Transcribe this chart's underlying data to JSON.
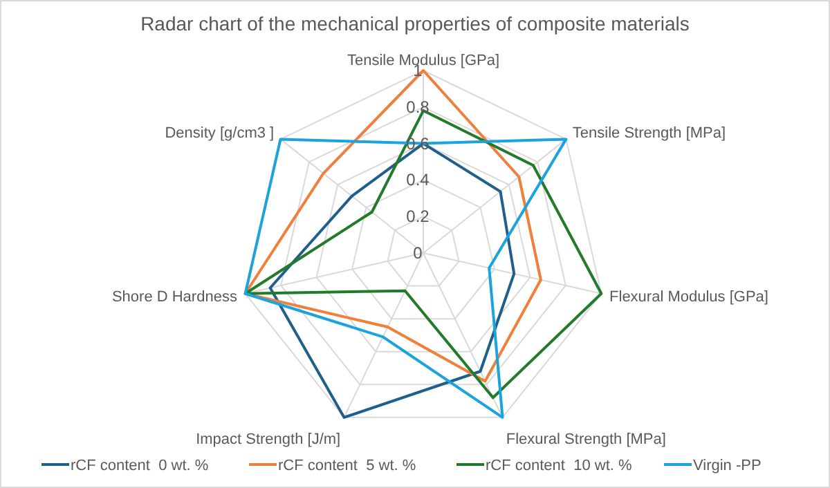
{
  "chart_data": {
    "type": "radar",
    "title": "Radar chart of the mechanical properties of composite materials",
    "categories": [
      "Tensile Modulus [GPa]",
      "Tensile Strength [MPa]",
      "Flexural Modulus [GPa]",
      "Flexural Strength [MPa]",
      "Impact Strength [J/m]",
      "Shore D Hardness",
      "Density [g/cm3 ]"
    ],
    "ylim": [
      0,
      1
    ],
    "yticks": [
      0,
      0.2,
      0.4,
      0.6,
      0.8,
      1
    ],
    "grid": true,
    "legend": "bottom",
    "marker": "none",
    "line_style": "solid",
    "series": [
      {
        "name": "rCF content  0 wt. %",
        "color": "#1f5f8b",
        "values": [
          0.6,
          0.54,
          0.51,
          0.72,
          1.0,
          0.86,
          0.5
        ]
      },
      {
        "name": "rCF content  5 wt. %",
        "color": "#f07f3c",
        "values": [
          1.0,
          0.67,
          0.66,
          0.78,
          0.45,
          1.0,
          0.7
        ]
      },
      {
        "name": "rCF content  10 wt. %",
        "color": "#237a2a",
        "values": [
          0.78,
          0.77,
          1.0,
          0.88,
          0.23,
          1.0,
          0.36
        ]
      },
      {
        "name": "Virgin -PP",
        "color": "#1aa3dd",
        "values": [
          0.6,
          1.0,
          0.37,
          1.0,
          0.51,
          1.0,
          1.0
        ]
      }
    ]
  }
}
